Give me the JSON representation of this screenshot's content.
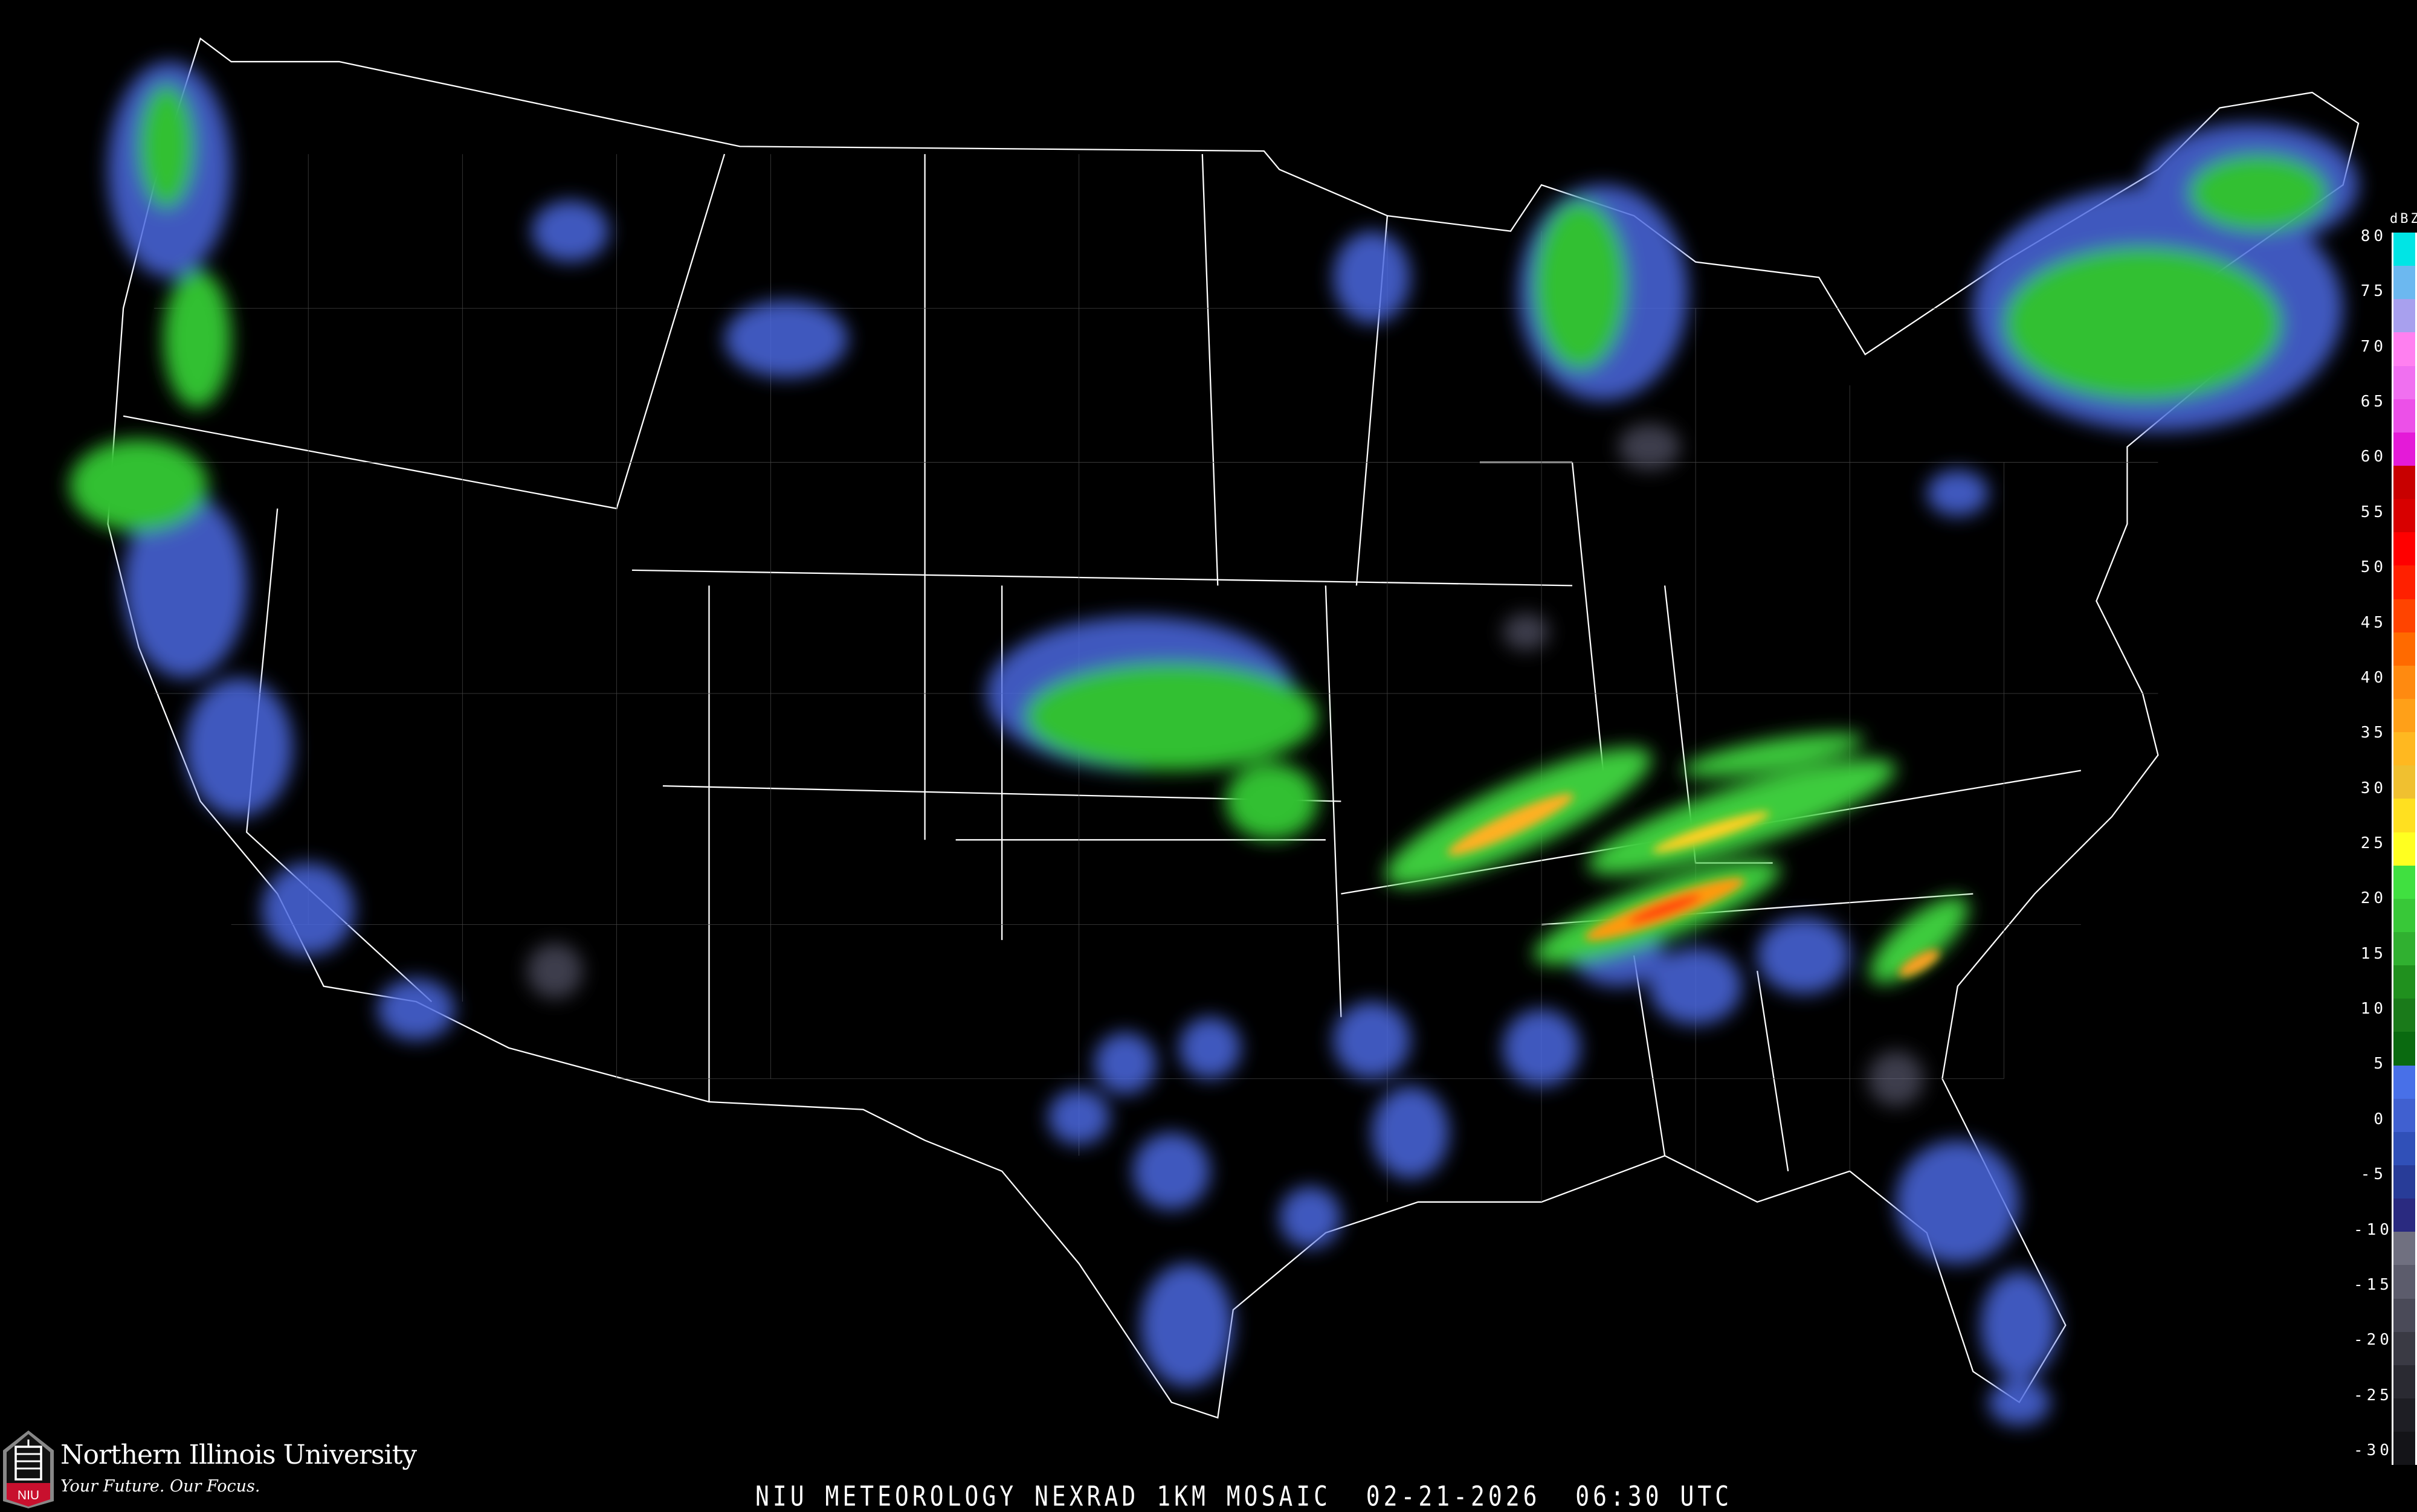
{
  "map": {
    "title": "NIU METEOROLOGY NEXRAD 1KM MOSAIC",
    "datetime": "02-21-2026  06:30 UTC",
    "colors": {
      "background": "#000000",
      "boundaries": "#ffffff",
      "roads": "#8b4a2a"
    }
  },
  "branding": {
    "university": "Northern Illinois University",
    "tagline": "Your Future. Our Focus.",
    "logo_text": "NIU",
    "logo_color": "#c8102e"
  },
  "legend": {
    "unit": "dBZ",
    "labels": [
      "80",
      "75",
      "70",
      "65",
      "60",
      "55",
      "50",
      "45",
      "40",
      "35",
      "30",
      "25",
      "20",
      "15",
      "10",
      "5",
      "0",
      "-5",
      "-10",
      "-15",
      "-20",
      "-25",
      "-30"
    ],
    "colors": [
      "#00e5e5",
      "#6cb8f0",
      "#a8a0ee",
      "#ff80f0",
      "#f070f0",
      "#ec50e8",
      "#e41ad8",
      "#c80000",
      "#d80000",
      "#ff0000",
      "#ff2000",
      "#ff4400",
      "#ff6a00",
      "#ff8a10",
      "#ffa018",
      "#ffb820",
      "#f0c030",
      "#ffe020",
      "#ffff20",
      "#40e040",
      "#38c838",
      "#30b030",
      "#20901e",
      "#1a7a1a",
      "#0a6a10",
      "#4870e8",
      "#4060d0",
      "#3050b8",
      "#283c98",
      "#2a2a80",
      "#707080",
      "#5c5c6c",
      "#4a4a58",
      "#3a3a44",
      "#2a2a32",
      "#1e1e24",
      "#141418"
    ]
  }
}
